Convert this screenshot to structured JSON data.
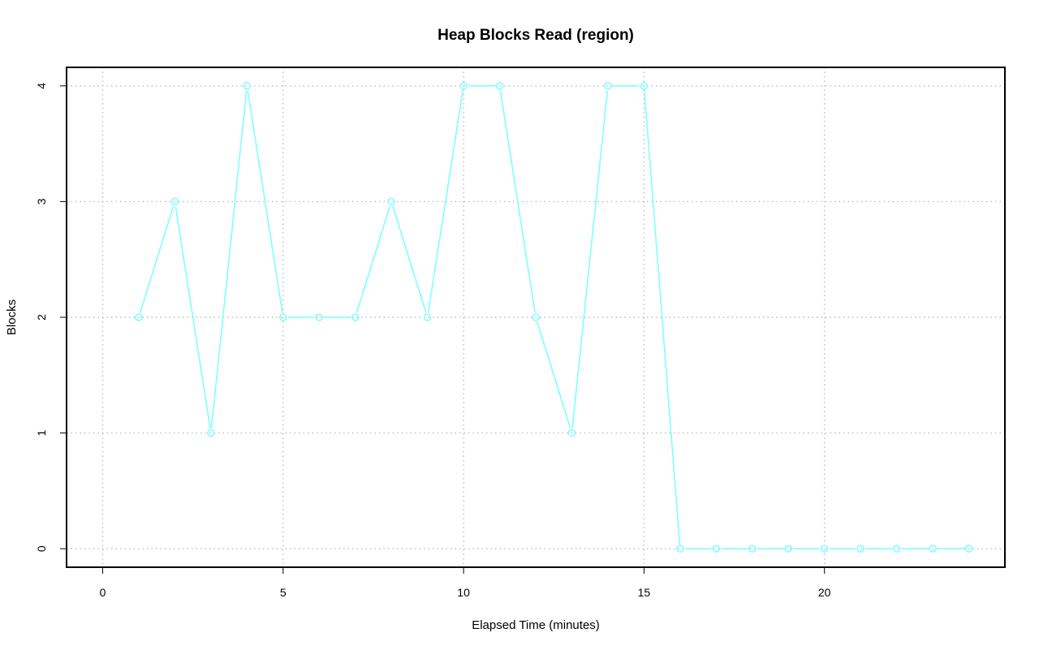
{
  "chart_data": {
    "type": "line",
    "title": "Heap Blocks Read (region)",
    "xlabel": "Elapsed Time (minutes)",
    "ylabel": "Blocks",
    "xlim": [
      -1,
      25
    ],
    "ylim": [
      -0.16,
      4.16
    ],
    "x_ticks": [
      0,
      5,
      10,
      15,
      20
    ],
    "y_ticks": [
      0,
      1,
      2,
      3,
      4
    ],
    "grid": true,
    "series": [
      {
        "color": "#80ffff",
        "marker": "circle",
        "x": [
          1,
          2,
          3,
          4,
          5,
          6,
          7,
          8,
          9,
          10,
          11,
          12,
          13,
          14,
          15,
          16,
          17,
          18,
          19,
          20,
          21,
          22,
          23,
          24
        ],
        "values": [
          2,
          3,
          1,
          4,
          2,
          2,
          2,
          3,
          2,
          4,
          4,
          2,
          1,
          4,
          4,
          0,
          0,
          0,
          0,
          0,
          0,
          0,
          0,
          0
        ]
      }
    ]
  }
}
